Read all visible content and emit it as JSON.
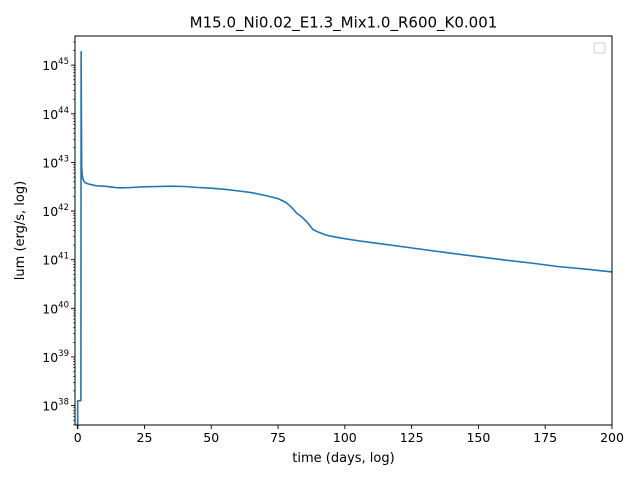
{
  "chart_data": {
    "type": "line",
    "title": "M15.0_Ni0.02_E1.3_Mix1.0_R600_K0.001",
    "xlabel": "time (days, log)",
    "ylabel": "lum (erg/s, log)",
    "xlim": [
      -1,
      200
    ],
    "ylim_log10": [
      37.6,
      45.6
    ],
    "yscale": "log",
    "legend": "top-right (empty)",
    "grid": false,
    "line_color": "#1f77b4",
    "x_ticks": [
      0,
      25,
      50,
      75,
      100,
      125,
      150,
      175,
      200
    ],
    "x_tick_labels": [
      "0",
      "25",
      "50",
      "75",
      "100",
      "125",
      "150",
      "175",
      "200"
    ],
    "y_ticks_exp": [
      38,
      39,
      40,
      41,
      42,
      43,
      44,
      45
    ],
    "y_tick_base": "10",
    "series": [
      {
        "x": [
          0,
          0,
          0.3,
          0.5,
          0.9,
          1.2,
          1.3,
          1.4,
          1.5,
          1.7,
          2,
          2.5,
          3,
          4,
          5,
          7,
          10,
          15,
          17,
          20,
          25,
          30,
          35,
          40,
          45,
          50,
          55,
          60,
          65,
          70,
          75,
          78,
          80,
          82,
          84,
          86,
          88,
          90,
          93,
          96,
          100,
          105,
          110,
          120,
          130,
          140,
          150,
          160,
          170,
          180,
          190,
          200
        ],
        "y": [
          3.3e+37,
          1.26e+38,
          1.26e+38,
          1.26e+38,
          1.26e+38,
          1.26e+38,
          1.9e+45,
          1e+44,
          8e+42,
          5.5e+42,
          4.5e+42,
          4e+42,
          3.8e+42,
          3.6e+42,
          3.5e+42,
          3.3e+42,
          3.25e+42,
          3e+42,
          3e+42,
          3.05e+42,
          3.15e+42,
          3.2e+42,
          3.25e+42,
          3.2e+42,
          3.05e+42,
          2.95e+42,
          2.8e+42,
          2.6e+42,
          2.4e+42,
          2.1e+42,
          1.8e+42,
          1.5e+42,
          1.2e+42,
          9e+41,
          7.5e+41,
          5.8e+41,
          4.2e+41,
          3.7e+41,
          3.2e+41,
          2.95e+41,
          2.7e+41,
          2.45e+41,
          2.25e+41,
          1.9e+41,
          1.6e+41,
          1.35e+41,
          1.15e+41,
          9.8e+40,
          8.5e+40,
          7.2e+40,
          6.4e+40,
          5.6e+40
        ]
      }
    ]
  }
}
